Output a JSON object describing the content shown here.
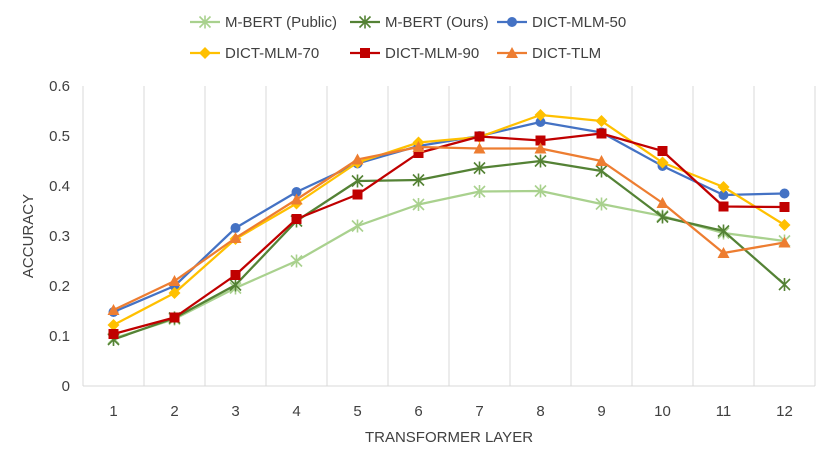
{
  "chart_data": {
    "type": "line",
    "title": "",
    "xlabel": "TRANSFORMER LAYER",
    "ylabel": "ACCURACY",
    "x": [
      1,
      2,
      3,
      4,
      5,
      6,
      7,
      8,
      9,
      10,
      11,
      12
    ],
    "x_tick_labels": [
      "1",
      "2",
      "3",
      "4",
      "5",
      "6",
      "7",
      "8",
      "9",
      "10",
      "11",
      "12"
    ],
    "ylim": [
      0,
      0.6
    ],
    "y_ticks": [
      0,
      0.1,
      0.2,
      0.3,
      0.4,
      0.5,
      0.6
    ],
    "y_tick_labels": [
      "0",
      "0.1",
      "0.2",
      "0.3",
      "0.4",
      "0.5",
      "0.6"
    ],
    "grid": "vertical",
    "legend_position": "top",
    "series": [
      {
        "name": "M-BERT (Public)",
        "color": "#a9d18e",
        "marker": "star",
        "values": [
          0.095,
          0.134,
          0.196,
          0.25,
          0.32,
          0.363,
          0.389,
          0.39,
          0.364,
          0.34,
          0.306,
          0.29
        ]
      },
      {
        "name": "M-BERT (Ours)",
        "color": "#548235",
        "marker": "star",
        "values": [
          0.093,
          0.136,
          0.202,
          0.33,
          0.41,
          0.412,
          0.436,
          0.45,
          0.43,
          0.338,
          0.31,
          0.203
        ]
      },
      {
        "name": "DICT-MLM-50",
        "color": "#4472c4",
        "marker": "circle",
        "values": [
          0.148,
          0.2,
          0.316,
          0.388,
          0.445,
          0.48,
          0.5,
          0.528,
          0.507,
          0.44,
          0.382,
          0.385
        ]
      },
      {
        "name": "DICT-MLM-70",
        "color": "#ffc000",
        "marker": "diamond",
        "values": [
          0.122,
          0.186,
          0.294,
          0.365,
          0.447,
          0.487,
          0.498,
          0.542,
          0.53,
          0.447,
          0.398,
          0.322
        ]
      },
      {
        "name": "DICT-MLM-90",
        "color": "#c00000",
        "marker": "square",
        "values": [
          0.104,
          0.137,
          0.222,
          0.334,
          0.383,
          0.466,
          0.499,
          0.491,
          0.505,
          0.47,
          0.359,
          0.358
        ]
      },
      {
        "name": "DICT-TLM",
        "color": "#ed7d31",
        "marker": "triangle",
        "values": [
          0.152,
          0.21,
          0.296,
          0.373,
          0.453,
          0.478,
          0.475,
          0.475,
          0.45,
          0.366,
          0.266,
          0.287
        ]
      }
    ]
  }
}
